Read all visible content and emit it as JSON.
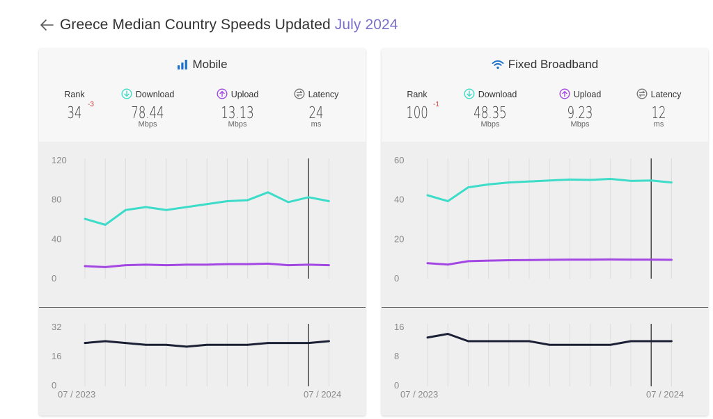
{
  "header": {
    "title": "Greece Median Country Speeds Updated",
    "date": "July 2024"
  },
  "colors": {
    "download": "#3ddcc9",
    "upload": "#a347e3",
    "latency": "#1b2035",
    "rank_change": "#d83b3b",
    "mobile_icon": "#1a6fc9",
    "fixed_icon": "#1a6fc9"
  },
  "labels": {
    "rank": "Rank",
    "download": "Download",
    "upload": "Upload",
    "latency": "Latency",
    "mbps": "Mbps",
    "ms": "ms"
  },
  "mobile": {
    "title": "Mobile",
    "icon": "signal-bars-icon",
    "rank": "34",
    "rank_change": "-3",
    "download": "78.44",
    "upload": "13.13",
    "latency": "24"
  },
  "fixed": {
    "title": "Fixed Broadband",
    "icon": "wifi-icon",
    "rank": "100",
    "rank_change": "-1",
    "download": "48.35",
    "upload": "9.23",
    "latency": "12"
  },
  "chart_data": [
    {
      "type": "line",
      "name": "mobile-speeds",
      "x": [
        "07 / 2023",
        "08 / 2023",
        "09 / 2023",
        "10 / 2023",
        "11 / 2023",
        "12 / 2023",
        "01 / 2024",
        "02 / 2024",
        "03 / 2024",
        "04 / 2024",
        "05 / 2024",
        "06 / 2024",
        "07 / 2024"
      ],
      "x_tick_labels": [
        "07 / 2023",
        "07 / 2024"
      ],
      "ylim": [
        0,
        120
      ],
      "y_ticks": [
        0,
        40,
        80,
        120
      ],
      "series": [
        {
          "key": "download",
          "values": [
            60,
            54,
            69,
            72,
            69,
            72,
            75,
            78,
            79,
            87,
            77,
            82,
            78
          ]
        },
        {
          "key": "upload",
          "values": [
            12,
            11,
            13,
            13.5,
            13,
            13.5,
            13.5,
            14,
            14,
            14.5,
            13,
            13.5,
            13
          ]
        }
      ],
      "highlight_x": "06 / 2024"
    },
    {
      "type": "line",
      "name": "mobile-latency",
      "x": [
        "07 / 2023",
        "08 / 2023",
        "09 / 2023",
        "10 / 2023",
        "11 / 2023",
        "12 / 2023",
        "01 / 2024",
        "02 / 2024",
        "03 / 2024",
        "04 / 2024",
        "05 / 2024",
        "06 / 2024",
        "07 / 2024"
      ],
      "ylim": [
        0,
        32
      ],
      "y_ticks": [
        0,
        16,
        32
      ],
      "series": [
        {
          "key": "latency",
          "values": [
            23,
            24,
            23,
            22,
            22,
            21,
            22,
            22,
            22,
            23,
            23,
            23,
            24
          ]
        }
      ],
      "highlight_x": "06 / 2024"
    },
    {
      "type": "line",
      "name": "fixed-speeds",
      "x": [
        "07 / 2023",
        "08 / 2023",
        "09 / 2023",
        "10 / 2023",
        "11 / 2023",
        "12 / 2023",
        "01 / 2024",
        "02 / 2024",
        "03 / 2024",
        "04 / 2024",
        "05 / 2024",
        "06 / 2024",
        "07 / 2024"
      ],
      "x_tick_labels": [
        "07 / 2023",
        "07 / 2024"
      ],
      "ylim": [
        0,
        60
      ],
      "y_ticks": [
        0,
        20,
        40,
        60
      ],
      "series": [
        {
          "key": "download",
          "values": [
            42,
            39,
            46,
            47.5,
            48.5,
            49,
            49.5,
            50,
            49.8,
            50.3,
            49.3,
            49.5,
            48.5
          ]
        },
        {
          "key": "upload",
          "values": [
            7.5,
            6.8,
            8.5,
            8.8,
            9,
            9.1,
            9.2,
            9.3,
            9.3,
            9.4,
            9.3,
            9.3,
            9.2
          ]
        }
      ],
      "highlight_x": "06 / 2024"
    },
    {
      "type": "line",
      "name": "fixed-latency",
      "x": [
        "07 / 2023",
        "08 / 2023",
        "09 / 2023",
        "10 / 2023",
        "11 / 2023",
        "12 / 2023",
        "01 / 2024",
        "02 / 2024",
        "03 / 2024",
        "04 / 2024",
        "05 / 2024",
        "06 / 2024",
        "07 / 2024"
      ],
      "ylim": [
        0,
        16
      ],
      "y_ticks": [
        0,
        8,
        16
      ],
      "series": [
        {
          "key": "latency",
          "values": [
            13,
            14,
            12,
            12,
            12,
            12,
            11,
            11,
            11,
            11,
            12,
            12,
            12
          ]
        }
      ],
      "highlight_x": "06 / 2024"
    }
  ]
}
